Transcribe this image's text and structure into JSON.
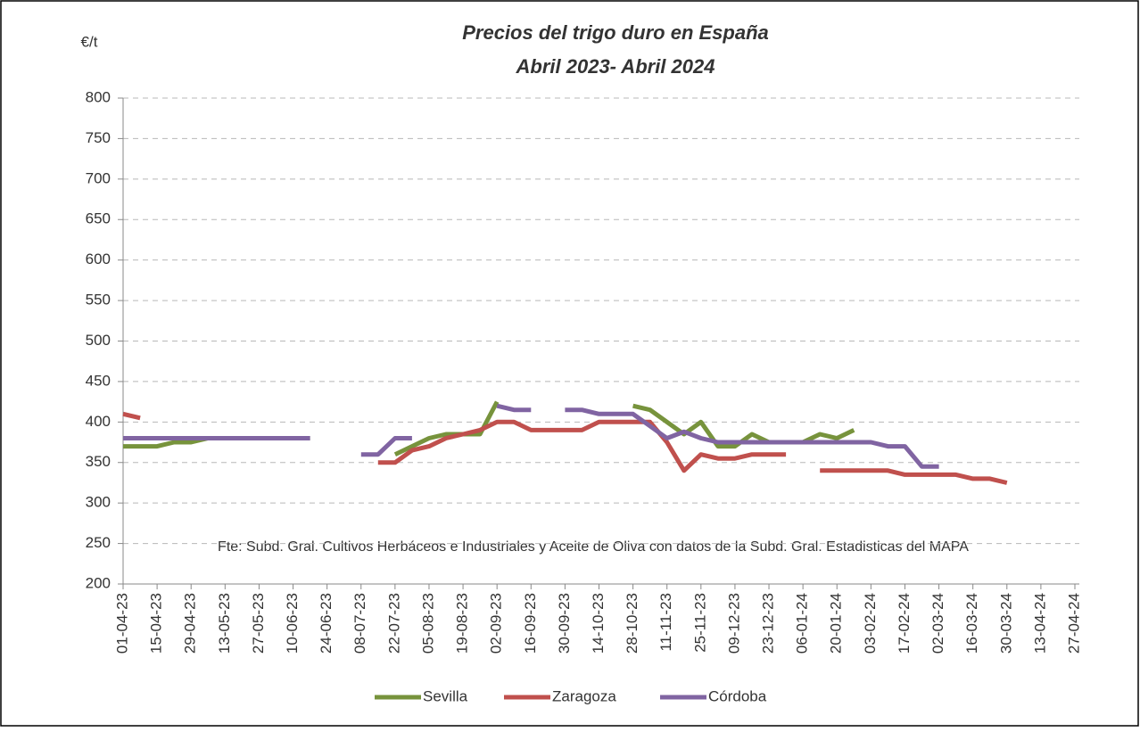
{
  "chart_data": {
    "type": "line",
    "title": "Precios del trigo duro en España",
    "subtitle": "Abril 2023- Abril 2024",
    "y_label": "€/t",
    "annotation": "Fte: Subd. Gral. Cultivos Herbáceos e Industriales y Aceite de Oliva con datos de la Subd. Gral. Estadisticas del MAPA",
    "categories": [
      "01-04-23",
      null,
      "15-04-23",
      null,
      "29-04-23",
      null,
      "13-05-23",
      null,
      "27-05-23",
      null,
      "10-06-23",
      null,
      "24-06-23",
      null,
      "08-07-23",
      null,
      "22-07-23",
      null,
      "05-08-23",
      null,
      "19-08-23",
      null,
      "02-09-23",
      null,
      "16-09-23",
      null,
      "30-09-23",
      null,
      "14-10-23",
      null,
      "28-10-23",
      null,
      "11-11-23",
      null,
      "25-11-23",
      null,
      "09-12-23",
      null,
      "23-12-23",
      null,
      "06-01-24",
      null,
      "20-01-24",
      null,
      "03-02-24",
      null,
      "17-02-24",
      null,
      "02-03-24",
      null,
      "16-03-24",
      null,
      "30-03-24",
      null,
      "13-04-24",
      null,
      "27-04-24"
    ],
    "series": [
      {
        "name": "Sevilla",
        "color": "#77933c",
        "values": [
          370,
          370,
          370,
          375,
          375,
          380,
          380,
          380,
          380,
          380,
          380,
          380,
          null,
          null,
          null,
          null,
          360,
          370,
          380,
          385,
          385,
          385,
          425,
          null,
          null,
          null,
          null,
          null,
          null,
          null,
          420,
          415,
          400,
          385,
          400,
          370,
          370,
          385,
          375,
          375,
          375,
          385,
          380,
          390,
          null,
          null,
          null,
          null,
          null,
          null,
          null,
          null,
          null,
          null,
          null,
          null,
          null
        ]
      },
      {
        "name": "Zaragoza",
        "color": "#c0504d",
        "values": [
          410,
          405,
          null,
          null,
          null,
          null,
          null,
          null,
          null,
          null,
          null,
          null,
          null,
          null,
          null,
          350,
          350,
          365,
          370,
          380,
          385,
          390,
          400,
          400,
          390,
          390,
          390,
          390,
          400,
          400,
          400,
          400,
          375,
          340,
          360,
          355,
          355,
          360,
          360,
          360,
          null,
          340,
          340,
          340,
          340,
          340,
          335,
          335,
          335,
          335,
          330,
          330,
          325,
          null,
          null,
          null,
          null
        ]
      },
      {
        "name": "Córdoba",
        "color": "#8064a2",
        "values": [
          380,
          380,
          380,
          380,
          380,
          380,
          380,
          380,
          380,
          380,
          380,
          380,
          null,
          null,
          360,
          360,
          380,
          380,
          null,
          null,
          null,
          null,
          420,
          415,
          415,
          null,
          415,
          415,
          410,
          410,
          410,
          395,
          380,
          388,
          380,
          375,
          375,
          375,
          375,
          375,
          375,
          375,
          375,
          375,
          375,
          370,
          370,
          345,
          345,
          null,
          null,
          null,
          null,
          null,
          null,
          null,
          null
        ]
      }
    ],
    "ylim": [
      200,
      800
    ],
    "yticks": [
      200,
      250,
      300,
      350,
      400,
      450,
      500,
      550,
      600,
      650,
      700,
      750,
      800
    ],
    "grid": true,
    "legend": "bottom"
  }
}
